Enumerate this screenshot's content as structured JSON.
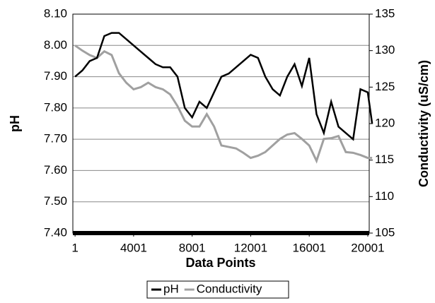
{
  "chart_data": {
    "type": "line",
    "x_label": "Data Points",
    "y_label": "pH",
    "y2_label": "Conductivity (uS/cm)",
    "x": [
      1,
      500,
      1000,
      1500,
      2000,
      2500,
      3000,
      3500,
      4000,
      4500,
      5000,
      5500,
      6000,
      6500,
      7000,
      7500,
      8000,
      8500,
      9000,
      9500,
      10000,
      10500,
      11000,
      11500,
      12000,
      12500,
      13000,
      13500,
      14000,
      14500,
      15000,
      15500,
      16000,
      16500,
      17000,
      17500,
      18000,
      18500,
      19000,
      19500,
      20000,
      20300
    ],
    "series": [
      {
        "name": "pH",
        "color": "#000000",
        "values": [
          7.9,
          7.92,
          7.95,
          7.96,
          8.03,
          8.04,
          8.04,
          8.02,
          8.0,
          7.98,
          7.96,
          7.94,
          7.93,
          7.93,
          7.9,
          7.8,
          7.77,
          7.82,
          7.8,
          7.85,
          7.9,
          7.91,
          7.93,
          7.95,
          7.97,
          7.96,
          7.9,
          7.86,
          7.84,
          7.9,
          7.94,
          7.87,
          7.96,
          7.78,
          7.72,
          7.82,
          7.74,
          7.72,
          7.7,
          7.86,
          7.85,
          7.75
        ]
      },
      {
        "name": "Conductivity",
        "color": "#a0a0a0",
        "axis": "y2",
        "values": [
          130.7,
          130,
          129.4,
          129,
          129.9,
          129.4,
          126.9,
          125.6,
          124.7,
          125,
          125.6,
          125,
          124.7,
          124,
          122.4,
          120.4,
          119.6,
          119.6,
          121.3,
          119.6,
          117,
          116.8,
          116.6,
          116,
          115.3,
          115.6,
          116.1,
          117,
          117.9,
          118.5,
          118.7,
          117.9,
          117,
          114.9,
          117.9,
          118,
          118.3,
          116.1,
          116,
          115.7,
          115.3,
          115.3
        ]
      }
    ],
    "xlim": [
      -150,
      20100
    ],
    "xticks": [
      1,
      4001,
      8001,
      12001,
      16001,
      20001
    ],
    "ylim": [
      7.4,
      8.1
    ],
    "yticks": [
      {
        "value": 7.4,
        "label": "7.40"
      },
      {
        "value": 7.5,
        "label": "7.50"
      },
      {
        "value": 7.6,
        "label": "7.60"
      },
      {
        "value": 7.7,
        "label": "7.70"
      },
      {
        "value": 7.8,
        "label": "7.80"
      },
      {
        "value": 7.9,
        "label": "7.90"
      },
      {
        "value": 8.0,
        "label": "8.00"
      },
      {
        "value": 8.1,
        "label": "8.10"
      }
    ],
    "y2lim": [
      105,
      135
    ],
    "y2ticks": [
      105,
      110,
      115,
      120,
      125,
      130,
      135
    ],
    "grid": true,
    "legend": "bottom"
  }
}
